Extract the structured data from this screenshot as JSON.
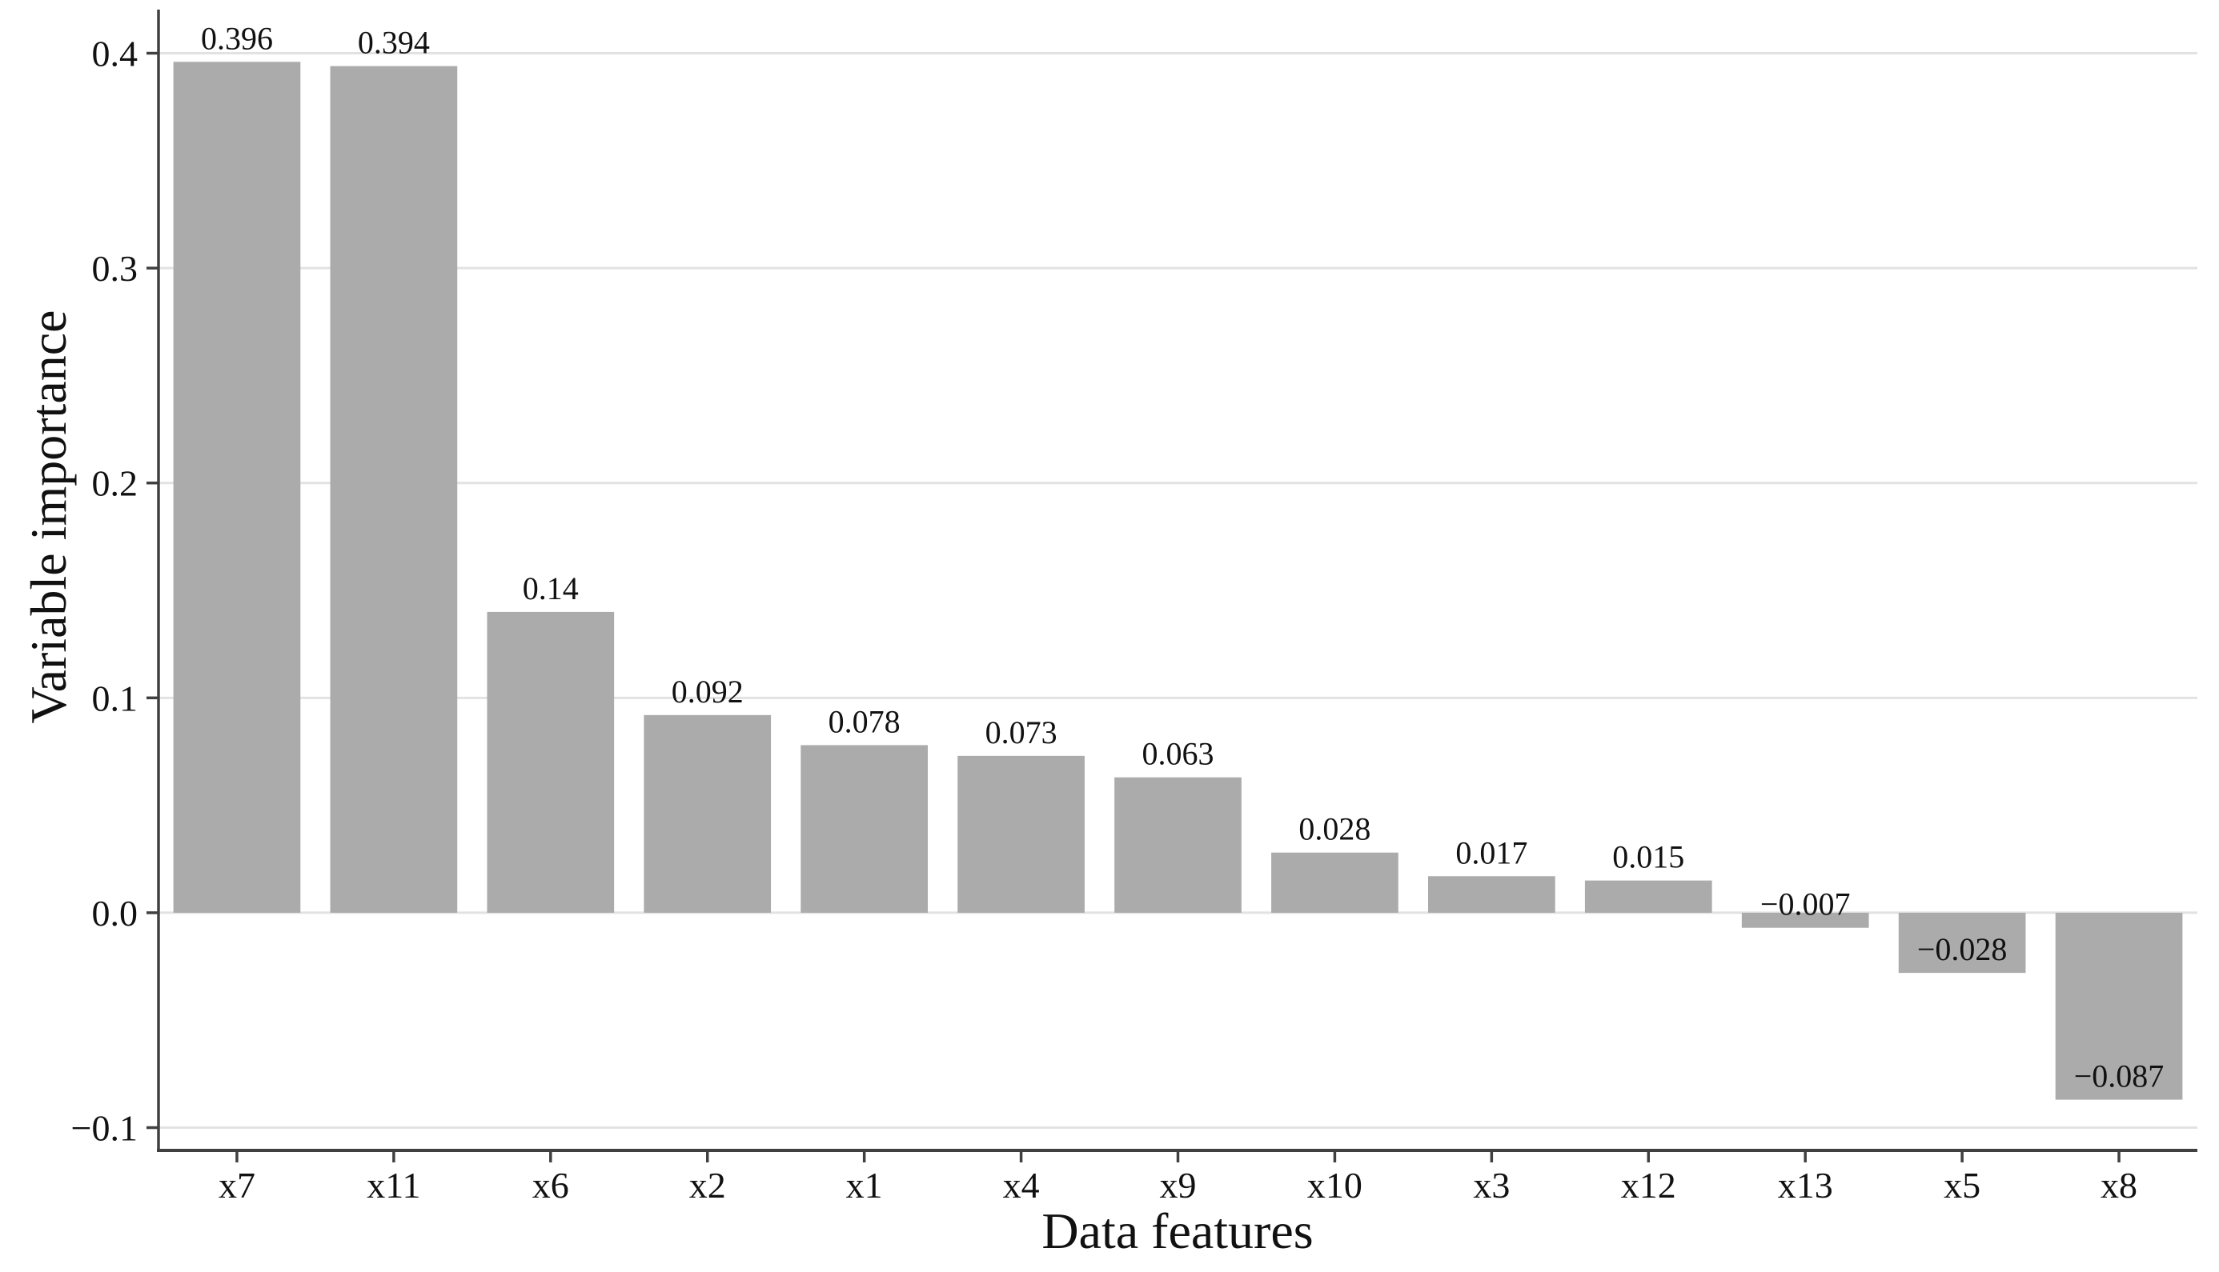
{
  "chart_data": {
    "type": "bar",
    "title": "",
    "xlabel": "Data features",
    "ylabel": "Variable importance",
    "categories": [
      "x7",
      "x11",
      "x6",
      "x2",
      "x1",
      "x4",
      "x9",
      "x10",
      "x3",
      "x12",
      "x13",
      "x5",
      "x8"
    ],
    "values": [
      0.396,
      0.394,
      0.14,
      0.092,
      0.078,
      0.073,
      0.063,
      0.028,
      0.017,
      0.015,
      -0.007,
      -0.028,
      -0.087
    ],
    "value_labels": [
      "0.396",
      "0.394",
      "0.14",
      "0.092",
      "0.078",
      "0.073",
      "0.063",
      "0.028",
      "0.017",
      "0.015",
      "−0.007",
      "−0.028",
      "−0.087"
    ],
    "yticks": [
      0.4,
      0.3,
      0.2,
      0.1,
      0.0,
      -0.1
    ],
    "ytick_labels": [
      "0.4",
      "0.3",
      "0.2",
      "0.1",
      "0.0",
      "−0.1"
    ],
    "ylim": [
      -0.1106,
      0.4203
    ],
    "grid": "horizontal",
    "legend": "none",
    "bar_color": "#ababab",
    "grid_color": "#e2e2e2",
    "axis_color": "#404040",
    "text_color": "#111111",
    "background": "#ffffff"
  }
}
